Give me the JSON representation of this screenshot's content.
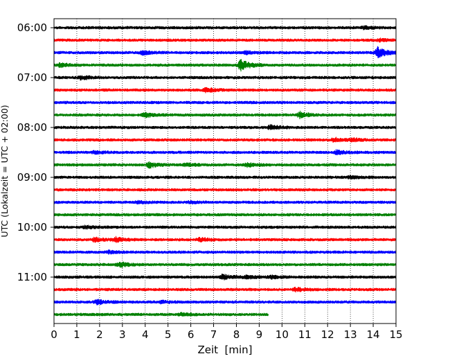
{
  "chart_data": {
    "type": "line",
    "title": "",
    "xlabel": "Zeit  [min]",
    "ylabel": "UTC (Lokalzeit = UTC + 02:00)",
    "xlim": [
      0,
      15
    ],
    "x_ticks": [
      0,
      1,
      2,
      3,
      4,
      5,
      6,
      7,
      8,
      9,
      10,
      11,
      12,
      13,
      14,
      15
    ],
    "y_tick_labels": [
      "06:00",
      "07:00",
      "08:00",
      "09:00",
      "10:00",
      "11:00"
    ],
    "grid": "vertical dotted",
    "colors_cycle": [
      "#000000",
      "#ff0000",
      "#0000ff",
      "#008000"
    ],
    "row_minutes": 15,
    "traces": [
      {
        "start": "06:00",
        "color": "#000000",
        "end_min": 15,
        "events": [
          {
            "t": 13.6,
            "a": 1.4
          }
        ]
      },
      {
        "start": "06:15",
        "color": "#ff0000",
        "end_min": 15,
        "events": [
          {
            "t": 14.3,
            "a": 1.5
          }
        ]
      },
      {
        "start": "06:30",
        "color": "#0000ff",
        "end_min": 15,
        "events": [
          {
            "t": 3.9,
            "a": 2.2
          },
          {
            "t": 8.4,
            "a": 1.6
          },
          {
            "t": 14.2,
            "a": 7.0
          }
        ]
      },
      {
        "start": "06:45",
        "color": "#008000",
        "end_min": 15,
        "events": [
          {
            "t": 0.3,
            "a": 2.5
          },
          {
            "t": 8.2,
            "a": 7.5
          }
        ]
      },
      {
        "start": "07:00",
        "color": "#000000",
        "end_min": 15,
        "events": [
          {
            "t": 1.2,
            "a": 2.5
          }
        ]
      },
      {
        "start": "07:15",
        "color": "#ff0000",
        "end_min": 15,
        "events": [
          {
            "t": 6.7,
            "a": 3.0
          }
        ]
      },
      {
        "start": "07:30",
        "color": "#0000ff",
        "end_min": 15,
        "events": []
      },
      {
        "start": "07:45",
        "color": "#008000",
        "end_min": 15,
        "events": [
          {
            "t": 4.0,
            "a": 3.0
          },
          {
            "t": 10.8,
            "a": 4.0
          }
        ]
      },
      {
        "start": "08:00",
        "color": "#000000",
        "end_min": 15,
        "events": [
          {
            "t": 9.5,
            "a": 3.0
          }
        ]
      },
      {
        "start": "08:15",
        "color": "#ff0000",
        "end_min": 15,
        "events": [
          {
            "t": 12.3,
            "a": 2.5
          },
          {
            "t": 13.1,
            "a": 2.0
          }
        ]
      },
      {
        "start": "08:30",
        "color": "#0000ff",
        "end_min": 15,
        "events": [
          {
            "t": 1.8,
            "a": 1.5
          },
          {
            "t": 12.4,
            "a": 2.5
          }
        ]
      },
      {
        "start": "08:45",
        "color": "#008000",
        "end_min": 15,
        "events": [
          {
            "t": 4.2,
            "a": 3.5
          },
          {
            "t": 5.8,
            "a": 2.0
          },
          {
            "t": 8.5,
            "a": 2.5
          }
        ]
      },
      {
        "start": "09:00",
        "color": "#000000",
        "end_min": 15,
        "events": [
          {
            "t": 13.0,
            "a": 1.5
          }
        ]
      },
      {
        "start": "09:15",
        "color": "#ff0000",
        "end_min": 15,
        "events": []
      },
      {
        "start": "09:30",
        "color": "#0000ff",
        "end_min": 15,
        "events": [
          {
            "t": 3.7,
            "a": 2.0
          },
          {
            "t": 6.0,
            "a": 1.5
          }
        ]
      },
      {
        "start": "09:45",
        "color": "#008000",
        "end_min": 15,
        "events": []
      },
      {
        "start": "10:00",
        "color": "#000000",
        "end_min": 15,
        "events": [
          {
            "t": 1.4,
            "a": 1.5
          }
        ]
      },
      {
        "start": "10:15",
        "color": "#ff0000",
        "end_min": 15,
        "events": [
          {
            "t": 1.8,
            "a": 2.5
          },
          {
            "t": 2.7,
            "a": 3.0
          },
          {
            "t": 6.4,
            "a": 2.5
          }
        ]
      },
      {
        "start": "10:30",
        "color": "#0000ff",
        "end_min": 15,
        "events": [
          {
            "t": 2.4,
            "a": 1.5
          }
        ]
      },
      {
        "start": "10:45",
        "color": "#008000",
        "end_min": 15,
        "events": [
          {
            "t": 2.9,
            "a": 3.0
          }
        ]
      },
      {
        "start": "11:00",
        "color": "#000000",
        "end_min": 15,
        "events": [
          {
            "t": 7.4,
            "a": 3.0
          },
          {
            "t": 8.4,
            "a": 2.0
          },
          {
            "t": 9.5,
            "a": 2.0
          }
        ]
      },
      {
        "start": "11:15",
        "color": "#ff0000",
        "end_min": 15,
        "events": [
          {
            "t": 10.6,
            "a": 2.5
          }
        ]
      },
      {
        "start": "11:30",
        "color": "#0000ff",
        "end_min": 15,
        "events": [
          {
            "t": 1.9,
            "a": 3.0
          },
          {
            "t": 4.7,
            "a": 1.5
          }
        ]
      },
      {
        "start": "11:45",
        "color": "#008000",
        "end_min": 9.4,
        "events": [
          {
            "t": 5.6,
            "a": 1.5
          }
        ]
      }
    ]
  }
}
